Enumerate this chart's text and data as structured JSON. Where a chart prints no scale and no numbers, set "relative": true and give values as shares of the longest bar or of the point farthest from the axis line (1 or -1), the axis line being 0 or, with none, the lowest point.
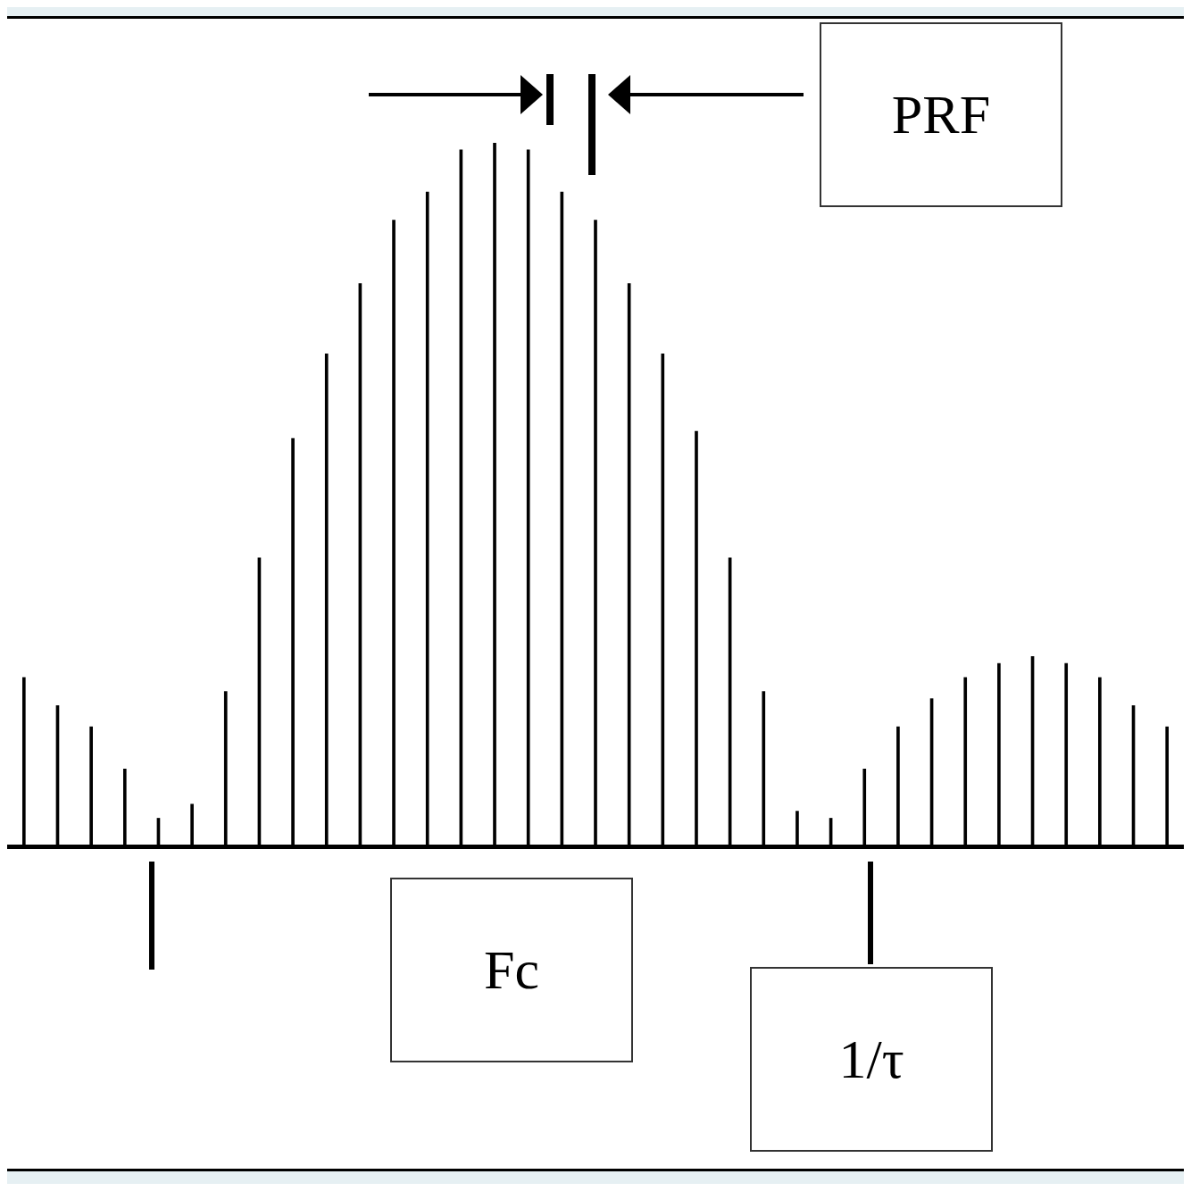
{
  "chart_data": {
    "type": "bar",
    "relative": true,
    "grid": false,
    "legend": false,
    "color": "#000000",
    "categories": [
      null,
      null,
      null,
      null,
      null,
      null,
      null,
      null,
      null,
      null,
      null,
      null,
      null,
      null,
      null,
      null,
      null,
      null,
      null,
      null,
      null,
      null,
      null,
      null,
      null,
      null,
      null,
      null,
      null,
      null,
      null,
      null,
      null,
      null,
      null
    ],
    "values": [
      0.24,
      0.2,
      0.17,
      0.11,
      0.04,
      0.06,
      0.22,
      0.41,
      0.58,
      0.7,
      0.8,
      0.89,
      0.93,
      0.99,
      1,
      0.99,
      0.93,
      0.89,
      0.8,
      0.7,
      0.59,
      0.41,
      0.22,
      0.05,
      0.04,
      0.11,
      0.17,
      0.21,
      0.24,
      0.26,
      0.27,
      0.26,
      0.24,
      0.2,
      0.17
    ],
    "annotations": [
      "PRF",
      "Fc",
      "1/τ"
    ]
  }
}
